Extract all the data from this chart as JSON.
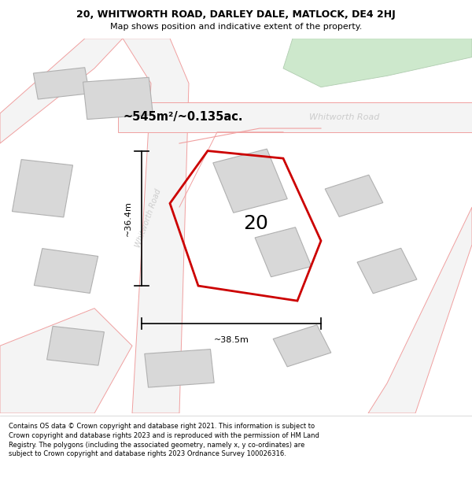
{
  "title": "20, WHITWORTH ROAD, DARLEY DALE, MATLOCK, DE4 2HJ",
  "subtitle": "Map shows position and indicative extent of the property.",
  "map_bg": "#f8f8f8",
  "road_color": "#f0a0a0",
  "property_color": "#cc0000",
  "property_label": "20",
  "area_text": "~545m²/~0.135ac.",
  "dim_width": "~38.5m",
  "dim_height": "~36.4m",
  "road_label_diag": "Whitworth Road",
  "road_label_horiz": "Whitworth Road",
  "copyright_text": "Contains OS data © Crown copyright and database right 2021. This information is subject to Crown copyright and database rights 2023 and is reproduced with the permission of HM Land Registry. The polygons (including the associated geometry, namely x, y co-ordinates) are subject to Crown copyright and database rights 2023 Ordnance Survey 100026316.",
  "green_color": "#cde8cc",
  "green_edge": "#b0ccb0",
  "building_color": "#d8d8d8",
  "building_edge": "#b0b0b0"
}
